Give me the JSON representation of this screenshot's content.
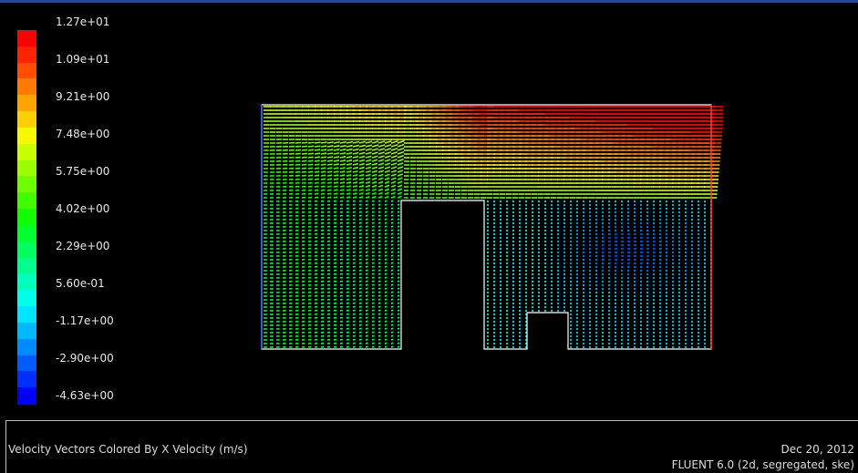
{
  "colorbar": {
    "labels": [
      "1.27e+01",
      "1.09e+01",
      "9.21e+00",
      "7.48e+00",
      "5.75e+00",
      "4.02e+00",
      "2.29e+00",
      "5.60e-01",
      "-1.17e+00",
      "-2.90e+00",
      "-4.63e+00"
    ],
    "colors": [
      "#ff0000",
      "#ff2400",
      "#ff4e00",
      "#ff7a00",
      "#ffa400",
      "#ffd000",
      "#f8f800",
      "#caff00",
      "#9aff00",
      "#6cff00",
      "#3eff00",
      "#10ff00",
      "#00ff2e",
      "#00ff5e",
      "#00ff8c",
      "#00ffbc",
      "#00ffea",
      "#00e4ff",
      "#00b8ff",
      "#008aff",
      "#005cff",
      "#002eff",
      "#0000ff"
    ],
    "min": -4.63,
    "max": 12.7
  },
  "caption": {
    "title": "Velocity Vectors Colored By X Velocity (m/s)",
    "date": "Dec 20, 2012",
    "solver": "FLUENT 6.0 (2d, segregated, ske)"
  }
}
